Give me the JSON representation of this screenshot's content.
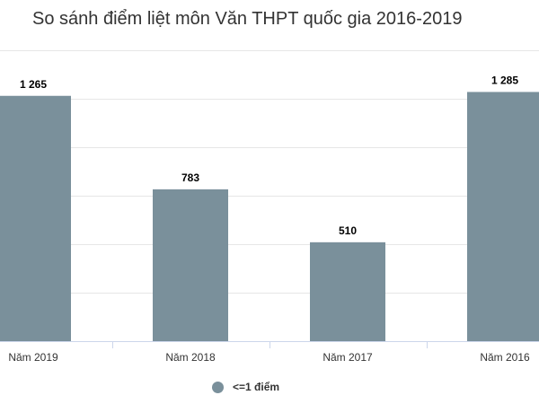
{
  "chart_data": {
    "type": "bar",
    "title": "So sánh điểm liệt môn Văn THPT quốc gia 2016-2019",
    "categories": [
      "Năm 2019",
      "Năm 2018",
      "Năm 2017",
      "Năm 2016"
    ],
    "value_labels": [
      "1 265",
      "783",
      "510",
      "1 285"
    ],
    "series": [
      {
        "name": "<=1 điểm",
        "values": [
          1265,
          783,
          510,
          1285
        ],
        "color": "#7a909b"
      }
    ],
    "ylim": [
      0,
      1500
    ],
    "grid": true,
    "legend_position": "bottom"
  }
}
